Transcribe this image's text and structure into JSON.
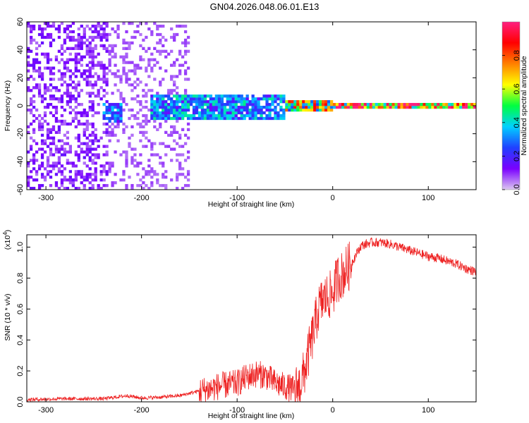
{
  "chart_data": [
    {
      "type": "heatmap",
      "title": "GN04.2026.048.06.01.E13",
      "xlabel": "Height of straight line (km)",
      "ylabel": "Frequency (Hz)",
      "xlim": [
        -320,
        150
      ],
      "ylim": [
        -60,
        60
      ],
      "xticks": [
        -300,
        -200,
        -100,
        0,
        100
      ],
      "yticks": [
        -60,
        -40,
        -20,
        0,
        20,
        40,
        60
      ],
      "xtick_labels": [
        "-300",
        "-200",
        "-100",
        "0",
        "100"
      ],
      "ytick_labels": [
        "-60",
        "-40",
        "-20",
        "0",
        "20",
        "40",
        "60"
      ],
      "description_regions": [
        {
          "x_range": [
            -320,
            -235
          ],
          "freq_range": [
            -60,
            60
          ],
          "amplitude": 0.12
        },
        {
          "x_range": [
            -235,
            -150
          ],
          "freq_range": [
            -60,
            60
          ],
          "amplitude": 0.07
        },
        {
          "x_range": [
            -240,
            -220
          ],
          "freq_range": [
            -12,
            2
          ],
          "amplitude": 0.3
        },
        {
          "x_range": [
            -190,
            -50
          ],
          "freq_range": [
            -10,
            8
          ],
          "amplitude": 0.35
        },
        {
          "x_range": [
            -50,
            0
          ],
          "freq_range": [
            -3,
            3
          ],
          "amplitude": 0.7
        },
        {
          "x_range": [
            0,
            150
          ],
          "freq_range": [
            -2,
            2
          ],
          "amplitude": 0.95
        }
      ],
      "colorbar": {
        "label": "Normalized spectral amplitude",
        "range": [
          0,
          1
        ],
        "ticks": [
          0.0,
          0.2,
          0.4,
          0.6,
          0.8
        ],
        "tick_labels": [
          "0.0",
          "0.2",
          "0.4",
          "0.6",
          "0.8"
        ],
        "colors": [
          "#dcc8f0",
          "#7a00ff",
          "#2040ff",
          "#00d0ff",
          "#00ff40",
          "#ffff00",
          "#ff8000",
          "#ff0000",
          "#ff2080"
        ]
      }
    },
    {
      "type": "line",
      "title": "",
      "xlabel": "Height of straight line (km)",
      "ylabel": "SNR (10 * v/v)",
      "exponent_label": "(x10",
      "exponent_power": "4",
      "exponent_close": ")",
      "xlim": [
        -320,
        150
      ],
      "ylim": [
        0,
        1.08
      ],
      "xticks": [
        -300,
        -200,
        -100,
        0,
        100
      ],
      "yticks": [
        0.0,
        0.2,
        0.4,
        0.6,
        0.8,
        1.0
      ],
      "xtick_labels": [
        "-300",
        "-200",
        "-100",
        "0",
        "100"
      ],
      "ytick_labels": [
        "0.0",
        "0.2",
        "0.4",
        "0.6",
        "0.8",
        "1.0"
      ],
      "color": "#ee2222",
      "series": [
        {
          "name": "SNR",
          "x": [
            -320,
            -280,
            -240,
            -215,
            -200,
            -180,
            -160,
            -150,
            -140,
            -130,
            -120,
            -110,
            -100,
            -90,
            -80,
            -70,
            -60,
            -50,
            -40,
            -35,
            -30,
            -25,
            -20,
            -15,
            -10,
            -5,
            0,
            5,
            10,
            15,
            20,
            25,
            30,
            40,
            50,
            60,
            70,
            80,
            90,
            100,
            110,
            120,
            130,
            140,
            150
          ],
          "y": [
            0.015,
            0.02,
            0.02,
            0.04,
            0.025,
            0.03,
            0.04,
            0.055,
            0.07,
            0.08,
            0.1,
            0.11,
            0.12,
            0.16,
            0.18,
            0.17,
            0.12,
            0.1,
            0.08,
            0.1,
            0.18,
            0.32,
            0.45,
            0.6,
            0.66,
            0.68,
            0.7,
            0.8,
            0.82,
            0.86,
            0.9,
            0.96,
            1.01,
            1.03,
            1.03,
            1.02,
            1.0,
            0.98,
            0.96,
            0.94,
            0.93,
            0.91,
            0.89,
            0.86,
            0.84
          ]
        }
      ],
      "noise_amplitude": [
        {
          "x_range": [
            -320,
            -140
          ],
          "amp": 0.012
        },
        {
          "x_range": [
            -140,
            -40
          ],
          "amp": 0.09
        },
        {
          "x_range": [
            -40,
            20
          ],
          "amp": 0.16
        },
        {
          "x_range": [
            20,
            150
          ],
          "amp": 0.03
        }
      ]
    }
  ]
}
